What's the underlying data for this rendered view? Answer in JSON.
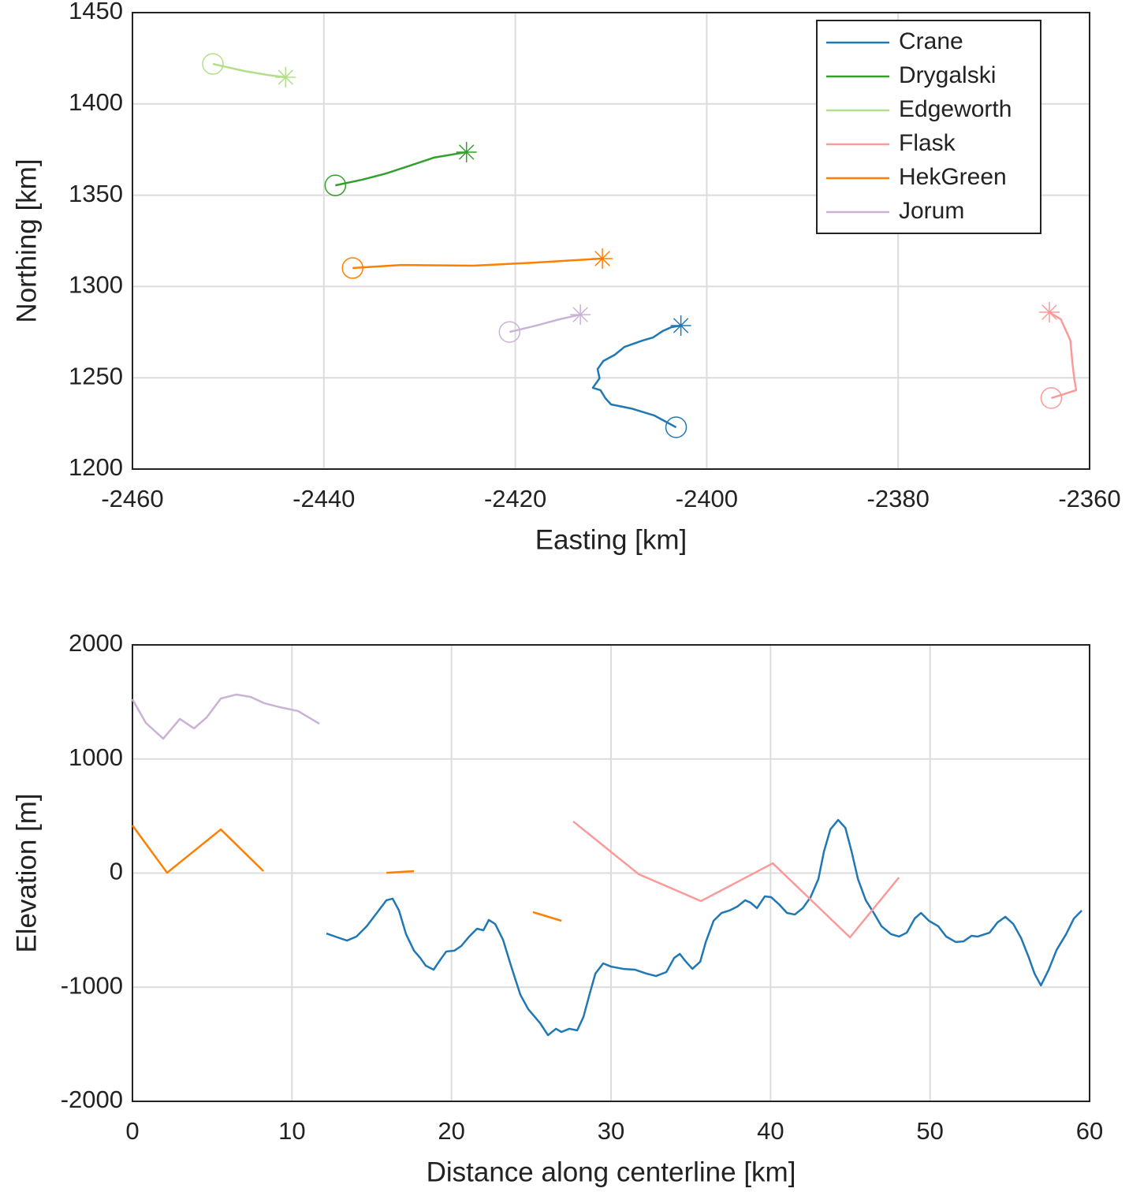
{
  "chart_data": [
    {
      "type": "line",
      "xlabel": "Easting [km]",
      "ylabel": "Northing [km]",
      "xlim": [
        -2460,
        -2360
      ],
      "ylim": [
        1200,
        1450
      ],
      "xticks": [
        -2460,
        -2440,
        -2420,
        -2400,
        -2380,
        -2360
      ],
      "yticks": [
        1200,
        1250,
        1300,
        1350,
        1400,
        1450
      ],
      "grid": true,
      "legend": "northeast",
      "start_marker": "circle",
      "end_marker": "asterisk",
      "series": [
        {
          "name": "Crane",
          "color": "#1f78b4",
          "x": [
            -2403.2,
            -2405.5,
            -2407.9,
            -2410.0,
            -2410.6,
            -2411.1,
            -2411.9,
            -2411.2,
            -2411.4,
            -2410.8,
            -2409.6,
            -2408.6,
            -2407.9,
            -2406.7,
            -2405.6,
            -2404.6,
            -2403.7,
            -2402.7
          ],
          "values": [
            1222.9,
            1229.4,
            1233.2,
            1235.4,
            1238.9,
            1243.2,
            1244.5,
            1249.7,
            1254.8,
            1259.2,
            1262.6,
            1266.9,
            1268.2,
            1270.4,
            1272.1,
            1275.6,
            1277.7,
            1278.6
          ]
        },
        {
          "name": "Drygalski",
          "color": "#33a02c",
          "x": [
            -2438.8,
            -2436.0,
            -2433.5,
            -2431.0,
            -2428.5,
            -2425.1
          ],
          "values": [
            1355.4,
            1358.5,
            1361.9,
            1366.2,
            1370.6,
            1373.6
          ]
        },
        {
          "name": "Edgeworth",
          "color": "#b2df8a",
          "x": [
            -2451.6,
            -2448.3,
            -2445.8,
            -2444.0
          ],
          "values": [
            1421.9,
            1418.0,
            1415.8,
            1414.6
          ]
        },
        {
          "name": "Flask",
          "color": "#fb9a99",
          "x": [
            -2364.0,
            -2361.4,
            -2361.6,
            -2361.8,
            -2362.0,
            -2363.0,
            -2364.2
          ],
          "values": [
            1238.9,
            1243.2,
            1249.7,
            1258.3,
            1270.4,
            1282.0,
            1285.9
          ]
        },
        {
          "name": "HekGreen",
          "color": "#ff7f00",
          "x": [
            -2437.0,
            -2431.8,
            -2424.4,
            -2417.8,
            -2410.9
          ],
          "values": [
            1310.1,
            1311.8,
            1311.4,
            1313.1,
            1315.3
          ]
        },
        {
          "name": "Jorum",
          "color": "#cab2d6",
          "x": [
            -2420.6,
            -2417.8,
            -2415.4,
            -2413.2
          ],
          "values": [
            1275.1,
            1278.6,
            1282.0,
            1284.6
          ]
        }
      ]
    },
    {
      "type": "line",
      "xlabel": "Distance along centerline [km]",
      "ylabel": "Elevation [m]",
      "xlim": [
        0,
        60
      ],
      "ylim": [
        -2000,
        2000
      ],
      "xticks": [
        0,
        10,
        20,
        30,
        40,
        50,
        60
      ],
      "yticks": [
        -2000,
        -1000,
        0,
        1000,
        2000
      ],
      "grid": true,
      "series": [
        {
          "name": "Crane",
          "color": "#1f78b4",
          "x": [
            12.16,
            12.85,
            13.45,
            14.04,
            14.68,
            15.32,
            15.92,
            16.31,
            16.71,
            17.15,
            17.65,
            18.04,
            18.39,
            18.88,
            19.28,
            19.67,
            20.17,
            20.61,
            21.11,
            21.6,
            22.0,
            22.34,
            22.74,
            23.23,
            23.73,
            24.32,
            24.81,
            25.56,
            26.05,
            26.55,
            26.89,
            27.39,
            27.88,
            28.27,
            28.67,
            29.02,
            29.51,
            30.0,
            30.75,
            31.49,
            32.24,
            32.82,
            33.47,
            33.96,
            34.31,
            34.7,
            35.1,
            35.59,
            35.94,
            36.43,
            36.93,
            37.42,
            37.91,
            38.41,
            38.75,
            39.15,
            39.64,
            40.04,
            40.53,
            41.03,
            41.52,
            42.02,
            42.51,
            43.0,
            43.35,
            43.75,
            44.24,
            44.69,
            45.08,
            45.48,
            45.97,
            46.47,
            46.96,
            47.55,
            48.05,
            48.54,
            49.04,
            49.43,
            49.93,
            50.52,
            51.01,
            51.61,
            52.1,
            52.6,
            52.99,
            53.73,
            54.23,
            54.72,
            55.22,
            55.71,
            56.2,
            56.55,
            56.95,
            57.44,
            57.93,
            58.53,
            59.02,
            59.51
          ],
          "values": [
            -529,
            -563,
            -591,
            -556,
            -466,
            -349,
            -238,
            -224,
            -328,
            -535,
            -680,
            -743,
            -812,
            -846,
            -763,
            -687,
            -680,
            -639,
            -556,
            -487,
            -501,
            -411,
            -446,
            -584,
            -812,
            -1067,
            -1192,
            -1316,
            -1420,
            -1364,
            -1392,
            -1364,
            -1378,
            -1261,
            -1054,
            -881,
            -791,
            -819,
            -839,
            -846,
            -881,
            -902,
            -867,
            -743,
            -708,
            -777,
            -839,
            -777,
            -604,
            -418,
            -349,
            -328,
            -294,
            -238,
            -259,
            -307,
            -204,
            -211,
            -273,
            -349,
            -363,
            -307,
            -211,
            -52,
            190,
            383,
            466,
            397,
            190,
            -52,
            -238,
            -349,
            -466,
            -535,
            -556,
            -522,
            -397,
            -349,
            -418,
            -466,
            -556,
            -604,
            -598,
            -549,
            -556,
            -522,
            -432,
            -383,
            -446,
            -570,
            -743,
            -881,
            -984,
            -846,
            -674,
            -535,
            -397,
            -328
          ]
        },
        {
          "name": "Flask",
          "color": "#fb9a99",
          "x": [
            27.63,
            31.74,
            35.64,
            40.14,
            44.98,
            48.05
          ],
          "values": [
            453,
            -10,
            -245,
            86,
            -563,
            -38
          ]
        },
        {
          "name": "HekGreen",
          "color": "#ff7f00",
          "x": [
            0,
            2.17,
            5.54,
            8.21,
            null,
            15.92,
            17.65,
            null,
            25.11,
            26.89
          ],
          "values": [
            418,
            3,
            383,
            17,
            null,
            3,
            17,
            null,
            -342,
            -418
          ]
        },
        {
          "name": "Jorum",
          "color": "#cab2d6",
          "x": [
            0,
            0.84,
            1.93,
            2.97,
            3.86,
            4.65,
            5.54,
            6.52,
            7.41,
            8.26,
            9.24,
            10.38,
            11.72
          ],
          "values": [
            1523,
            1316,
            1178,
            1351,
            1268,
            1364,
            1530,
            1565,
            1544,
            1489,
            1454,
            1420,
            1309
          ]
        }
      ]
    }
  ]
}
